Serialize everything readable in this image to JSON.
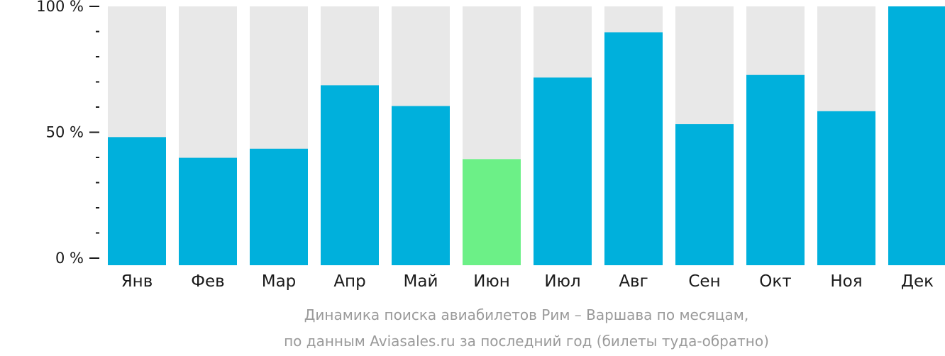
{
  "chart_data": {
    "type": "bar",
    "categories": [
      "Янв",
      "Фев",
      "Мар",
      "Апр",
      "Май",
      "Июн",
      "Июл",
      "Авг",
      "Сен",
      "Окт",
      "Ноя",
      "Дек"
    ],
    "values": [
      49.5,
      41.5,
      45,
      69.5,
      61.5,
      41,
      72.5,
      90,
      54.5,
      73.5,
      59.5,
      100
    ],
    "highlight_index": 5,
    "ylim": [
      0,
      100
    ],
    "y_ticks": [
      {
        "value": 0,
        "label": "0 %"
      },
      {
        "value": 50,
        "label": "50 %"
      },
      {
        "value": 100,
        "label": "100 %"
      }
    ],
    "minor_tick_step": 10,
    "caption_line1": "Динамика поиска авиабилетов Рим – Варшава по месяцам,",
    "caption_line2": "по данным Aviasales.ru за последний год (билеты туда-обратно)",
    "colors": {
      "bar": "#00b0dc",
      "highlight": "#6cf087",
      "background_bar": "#e8e8e8",
      "axis": "#1a1a1a",
      "caption": "#9a9a9a"
    }
  }
}
